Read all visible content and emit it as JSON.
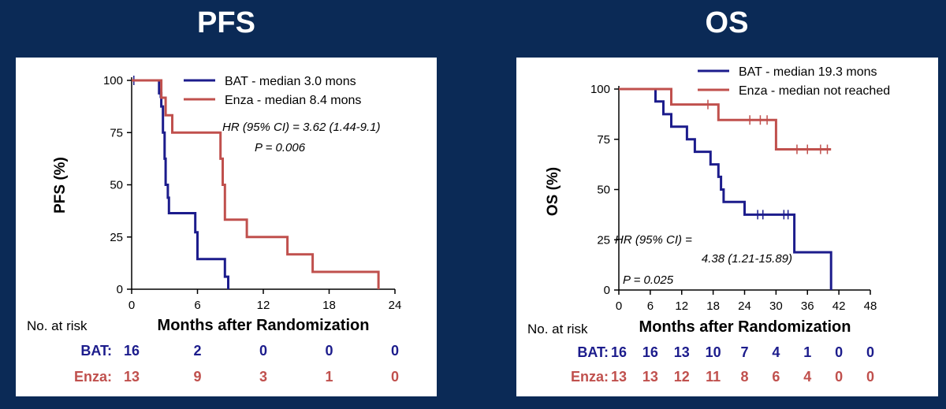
{
  "titles": {
    "pfs": "PFS",
    "os": "OS"
  },
  "colors": {
    "background": "#0b2a56",
    "bat": "#1c1c8c",
    "enza": "#c0504d"
  },
  "chart_data": [
    {
      "type": "line",
      "id": "pfs",
      "title": "PFS",
      "xlabel": "Months after Randomization",
      "ylabel": "PFS (%)",
      "xlim": [
        0,
        24
      ],
      "ylim": [
        0,
        100
      ],
      "x_ticks": [
        0,
        6,
        12,
        18,
        24
      ],
      "y_ticks": [
        0,
        25,
        50,
        75,
        100
      ],
      "legend_position": "top-right",
      "series": [
        {
          "name": "BAT - median 3.0 mons",
          "color": "#1c1c8c",
          "step_points": [
            [
              0,
              100
            ],
            [
              2.5,
              100
            ],
            [
              2.5,
              93.8
            ],
            [
              2.7,
              93.8
            ],
            [
              2.7,
              87.5
            ],
            [
              2.85,
              87.5
            ],
            [
              2.85,
              75
            ],
            [
              3.0,
              75
            ],
            [
              3.0,
              62.5
            ],
            [
              3.1,
              62.5
            ],
            [
              3.1,
              50
            ],
            [
              3.3,
              50
            ],
            [
              3.3,
              43.8
            ],
            [
              3.4,
              43.8
            ],
            [
              3.4,
              36.4
            ],
            [
              5.8,
              36.4
            ],
            [
              5.8,
              27.3
            ],
            [
              6.0,
              27.3
            ],
            [
              6.0,
              14.4
            ],
            [
              8.5,
              14.4
            ],
            [
              8.5,
              6.0
            ],
            [
              8.8,
              6.0
            ],
            [
              8.8,
              0
            ]
          ],
          "censor": [
            [
              0.2,
              100
            ],
            [
              2.6,
              93.8
            ]
          ]
        },
        {
          "name": "Enza - median 8.4 mons",
          "color": "#c0504d",
          "step_points": [
            [
              0,
              100
            ],
            [
              2.7,
              100
            ],
            [
              2.7,
              91.7
            ],
            [
              3.1,
              91.7
            ],
            [
              3.1,
              83.3
            ],
            [
              3.7,
              83.3
            ],
            [
              3.7,
              75
            ],
            [
              8.1,
              75
            ],
            [
              8.1,
              62.5
            ],
            [
              8.3,
              62.5
            ],
            [
              8.3,
              50
            ],
            [
              8.5,
              50
            ],
            [
              8.5,
              33.3
            ],
            [
              10.5,
              33.3
            ],
            [
              10.5,
              25
            ],
            [
              14.2,
              25
            ],
            [
              14.2,
              16.7
            ],
            [
              16.5,
              16.7
            ],
            [
              16.5,
              8.3
            ],
            [
              22.5,
              8.3
            ],
            [
              22.5,
              0
            ]
          ],
          "censor": []
        }
      ],
      "annotations": [
        "HR (95% CI) = 3.62 (1.44-9.1)",
        "P = 0.006"
      ],
      "risk_table": {
        "label": "No. at risk",
        "rows": [
          {
            "name": "BAT:",
            "values": [
              "16",
              "2",
              "0",
              "0",
              "0"
            ]
          },
          {
            "name": "Enza:",
            "values": [
              "13",
              "9",
              "3",
              "1",
              "0"
            ]
          }
        ]
      }
    },
    {
      "type": "line",
      "id": "os",
      "title": "OS",
      "xlabel": "Months after Randomization",
      "ylabel": "OS (%)",
      "xlim": [
        0,
        48
      ],
      "ylim": [
        0,
        100
      ],
      "x_ticks": [
        0,
        6,
        12,
        18,
        24,
        30,
        36,
        42,
        48
      ],
      "y_ticks": [
        0,
        25,
        50,
        75,
        100
      ],
      "legend_position": "top-right",
      "series": [
        {
          "name": "BAT - median 19.3 mons",
          "color": "#1c1c8c",
          "step_points": [
            [
              0,
              100
            ],
            [
              7,
              100
            ],
            [
              7,
              93.8
            ],
            [
              8.5,
              93.8
            ],
            [
              8.5,
              87.5
            ],
            [
              10,
              87.5
            ],
            [
              10,
              81.3
            ],
            [
              13,
              81.3
            ],
            [
              13,
              75
            ],
            [
              14.5,
              75
            ],
            [
              14.5,
              68.8
            ],
            [
              17.5,
              68.8
            ],
            [
              17.5,
              62.5
            ],
            [
              19,
              62.5
            ],
            [
              19,
              56.3
            ],
            [
              19.5,
              56.3
            ],
            [
              19.5,
              50
            ],
            [
              20,
              50
            ],
            [
              20,
              43.8
            ],
            [
              24,
              43.8
            ],
            [
              24,
              37.5
            ],
            [
              33.5,
              37.5
            ],
            [
              33.5,
              18.8
            ],
            [
              40.5,
              18.8
            ],
            [
              40.5,
              0
            ]
          ],
          "censor": [
            [
              26.5,
              37.5
            ],
            [
              27.5,
              37.5
            ],
            [
              31.5,
              37.5
            ],
            [
              32.3,
              37.5
            ]
          ]
        },
        {
          "name": "Enza - median not reached",
          "color": "#c0504d",
          "step_points": [
            [
              0,
              100
            ],
            [
              10,
              100
            ],
            [
              10,
              92.3
            ],
            [
              19,
              92.3
            ],
            [
              19,
              84.6
            ],
            [
              30,
              84.6
            ],
            [
              30,
              70
            ],
            [
              40.5,
              70
            ]
          ],
          "censor": [
            [
              17,
              92.3
            ],
            [
              25,
              84.6
            ],
            [
              27,
              84.6
            ],
            [
              28.3,
              84.6
            ],
            [
              34,
              70
            ],
            [
              36,
              70
            ],
            [
              38.5,
              70
            ],
            [
              39.8,
              70
            ]
          ]
        }
      ],
      "annotations": [
        "HR (95% CI) =",
        "4.38 (1.21-15.89)",
        "P = 0.025"
      ],
      "risk_table": {
        "label": "No. at risk",
        "rows": [
          {
            "name": "BAT:",
            "values": [
              "16",
              "16",
              "13",
              "10",
              "7",
              "4",
              "1",
              "0",
              "0"
            ]
          },
          {
            "name": "Enza:",
            "values": [
              "13",
              "13",
              "12",
              "11",
              "8",
              "6",
              "4",
              "0",
              "0"
            ]
          }
        ]
      }
    }
  ]
}
